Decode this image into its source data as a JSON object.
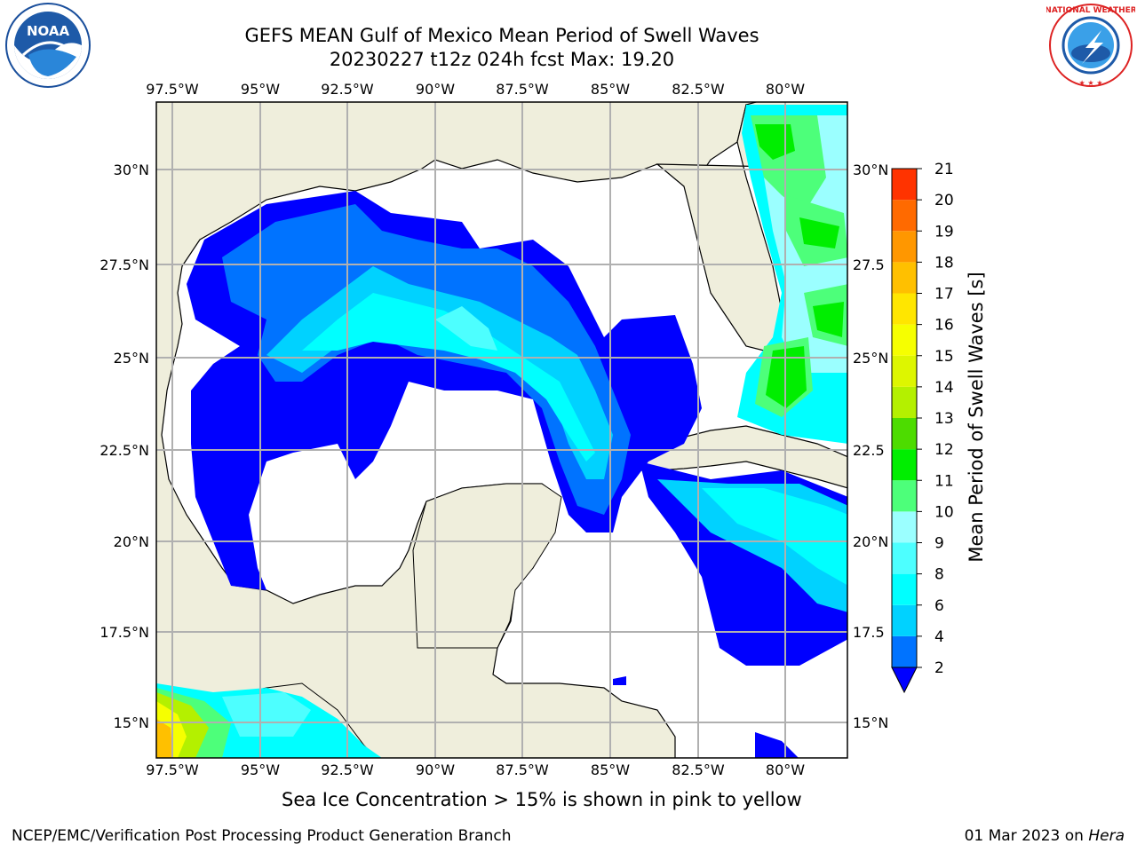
{
  "title_line1": "GEFS MEAN Gulf of Mexico Mean Period of Swell Waves",
  "title_line2": "20230227 t12z 024h fcst   Max: 19.20",
  "logos": {
    "left": "noaa-logo",
    "right": "nws-logo"
  },
  "map": {
    "region": "Gulf of Mexico",
    "lon_range": [
      -98.0,
      -81.7
    ],
    "lat_range": [
      14.0,
      32.0
    ],
    "lon_ticks": [
      "97.5°W",
      "95°W",
      "92.5°W",
      "90°W",
      "87.5°W",
      "85°W",
      "82.5°W",
      "80°W"
    ],
    "lat_ticks_left": [
      "30°N",
      "27.5°N",
      "25°N",
      "22.5°N",
      "20°N",
      "17.5°N",
      "15°N"
    ],
    "lat_ticks_right": [
      "30°N",
      "27.5",
      "25°N",
      "22.5",
      "20°N",
      "17.5",
      "15°N"
    ],
    "land_color": "#efeedc",
    "grid_color": "#b0b0b0"
  },
  "colorbar": {
    "label": "Mean Period of Swell Waves [s]",
    "levels": [
      "2",
      "4",
      "6",
      "8",
      "9",
      "10",
      "11",
      "12",
      "13",
      "14",
      "15",
      "16",
      "17",
      "18",
      "19",
      "20",
      "21"
    ],
    "colors": [
      "#0073ff",
      "#00d2ff",
      "#00ffff",
      "#4dffff",
      "#9bffff",
      "#4dff7a",
      "#00ee00",
      "#4ddc00",
      "#b4f000",
      "#ddf600",
      "#f6ff00",
      "#ffe600",
      "#ffc000",
      "#ff9700",
      "#ff6a00",
      "#ff3300"
    ],
    "under_color": "#0000ff"
  },
  "footer_note": "Sea Ice Concentration > 15% is shown in pink to yellow",
  "footer_left": "NCEP/EMC/Verification Post Processing Product Generation Branch",
  "footer_date": "01 Mar 2023",
  "footer_on": "on",
  "footer_machine": "Hera"
}
